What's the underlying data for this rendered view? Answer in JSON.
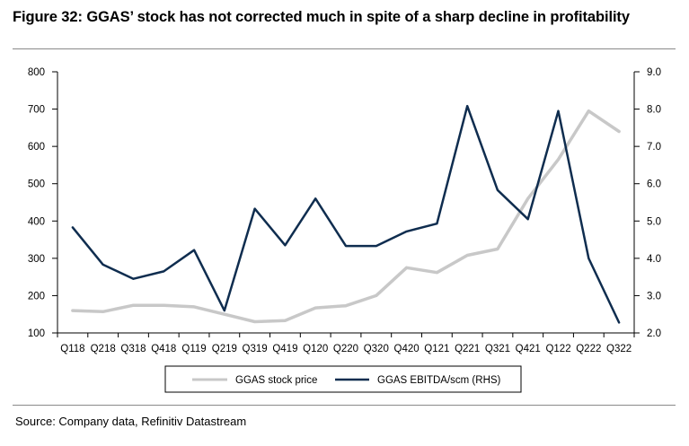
{
  "title": "Figure 32: GGAS’ stock has not corrected much in spite of a sharp decline in profitability",
  "source": "Source: Company data, Refinitiv Datastream",
  "chart_data": {
    "type": "line",
    "categories": [
      "Q118",
      "Q218",
      "Q318",
      "Q418",
      "Q119",
      "Q219",
      "Q319",
      "Q419",
      "Q120",
      "Q220",
      "Q320",
      "Q420",
      "Q121",
      "Q221",
      "Q321",
      "Q421",
      "Q122",
      "Q222",
      "Q322"
    ],
    "y_left": {
      "ylim": [
        100,
        800
      ],
      "ticks": [
        "100",
        "200",
        "300",
        "400",
        "500",
        "600",
        "700",
        "800"
      ]
    },
    "y_right": {
      "ylim": [
        2.0,
        9.0
      ],
      "ticks": [
        "2.0",
        "3.0",
        "4.0",
        "5.0",
        "6.0",
        "7.0",
        "8.0",
        "9.0"
      ]
    },
    "series": [
      {
        "name": "GGAS stock price",
        "axis": "left",
        "color": "#c8c8c8",
        "values": [
          160,
          157,
          174,
          174,
          170,
          150,
          130,
          133,
          167,
          173,
          200,
          275,
          262,
          308,
          325,
          460,
          565,
          695,
          640
        ]
      },
      {
        "name": "GGAS EBITDA/scm (RHS)",
        "axis": "right",
        "color": "#0f2d4f",
        "values": [
          4.83,
          3.83,
          3.45,
          3.65,
          4.22,
          2.6,
          5.33,
          4.35,
          5.6,
          4.33,
          4.33,
          4.72,
          4.93,
          8.08,
          5.83,
          5.05,
          7.95,
          4.0,
          2.28
        ]
      }
    ],
    "grid": false,
    "legend": "bottom"
  }
}
